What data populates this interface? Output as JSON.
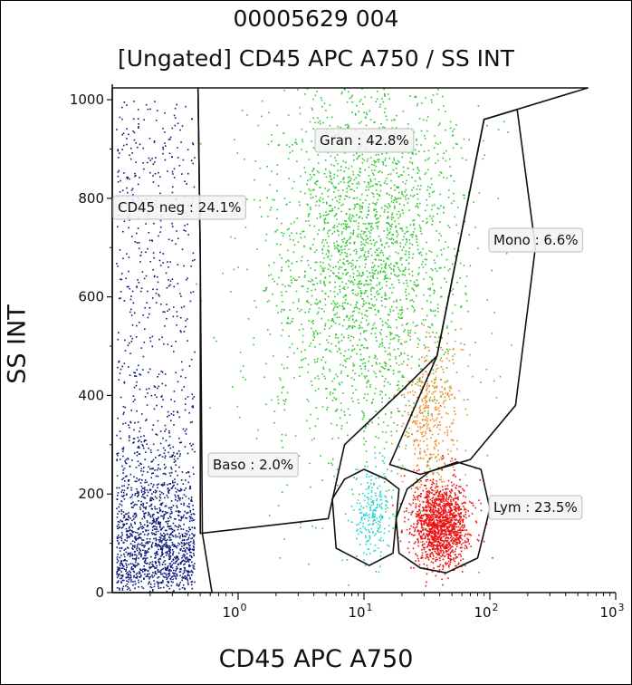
{
  "chart_data": {
    "type": "scatter",
    "title": "00005629 004",
    "subtitle": "[Ungated] CD45 APC A750 / SS INT",
    "xlabel": "CD45 APC A750",
    "ylabel": "SS INT",
    "xscale": "log",
    "xlim": [
      0.1,
      1000
    ],
    "ylim": [
      0,
      1024
    ],
    "xticks": [
      {
        "value": 1,
        "base": "10",
        "exp": "0"
      },
      {
        "value": 10,
        "base": "10",
        "exp": "1"
      },
      {
        "value": 100,
        "base": "10",
        "exp": "2"
      },
      {
        "value": 1000,
        "base": "10",
        "exp": "3"
      }
    ],
    "yticks": [
      {
        "value": 0,
        "label": "0"
      },
      {
        "value": 200,
        "label": "200"
      },
      {
        "value": 400,
        "label": "400"
      },
      {
        "value": 600,
        "label": "600"
      },
      {
        "value": 800,
        "label": "800"
      },
      {
        "value": 1000,
        "label": "1000"
      }
    ],
    "grid": false,
    "gates": [
      {
        "name": "CD45 neg",
        "label": "CD45 neg : 24.1%",
        "percent": 24.1,
        "color": "#0a1a7a",
        "polygon": [
          [
            0.1,
            1024
          ],
          [
            0.48,
            1024
          ],
          [
            0.5,
            680
          ],
          [
            0.52,
            120
          ],
          [
            0.62,
            0
          ],
          [
            0.1,
            0
          ]
        ]
      },
      {
        "name": "Gran",
        "label": "Gran : 42.8%",
        "percent": 42.8,
        "color": "#33cc33",
        "polygon": [
          [
            0.48,
            1024
          ],
          [
            80,
            1024
          ],
          [
            600,
            1024
          ],
          [
            90,
            960
          ],
          [
            38,
            480
          ],
          [
            20,
            410
          ],
          [
            7,
            300
          ],
          [
            5.2,
            150
          ],
          [
            0.5,
            120
          ],
          [
            0.5,
            680
          ]
        ]
      },
      {
        "name": "Mono",
        "label": "Mono : 6.6%",
        "percent": 6.6,
        "color": "#ee8a20",
        "polygon": [
          [
            90,
            960
          ],
          [
            165,
            980
          ],
          [
            230,
            700
          ],
          [
            160,
            380
          ],
          [
            70,
            270
          ],
          [
            28,
            240
          ],
          [
            16,
            260
          ],
          [
            38,
            480
          ]
        ]
      },
      {
        "name": "Baso",
        "label": "Baso : 2.0%",
        "percent": 2.0,
        "color": "#33dddd",
        "polygon": [
          [
            10,
            250
          ],
          [
            15,
            230
          ],
          [
            19,
            210
          ],
          [
            17,
            80
          ],
          [
            11,
            55
          ],
          [
            6,
            90
          ],
          [
            5.6,
            190
          ],
          [
            7,
            230
          ]
        ]
      },
      {
        "name": "Lym",
        "label": "Lym : 23.5%",
        "percent": 23.5,
        "color": "#ee1111",
        "polygon": [
          [
            18,
            150
          ],
          [
            22,
            210
          ],
          [
            33,
            245
          ],
          [
            55,
            265
          ],
          [
            85,
            250
          ],
          [
            100,
            170
          ],
          [
            80,
            70
          ],
          [
            45,
            40
          ],
          [
            28,
            50
          ],
          [
            19,
            80
          ]
        ]
      }
    ],
    "populations": [
      {
        "name": "CD45 neg",
        "color": "#0a1a7a",
        "count": 1900,
        "x_log_range": [
          -0.97,
          -0.35
        ],
        "y_mode": "low-dense"
      },
      {
        "name": "Gran",
        "color": "#2ec82e",
        "count": 2600,
        "x_log_center": 1.0,
        "x_log_sd": 0.38,
        "y_center": 690,
        "y_sd": 210
      },
      {
        "name": "Mono",
        "color": "#ee8a20",
        "count": 420,
        "x_log_center": 1.52,
        "x_log_sd": 0.13,
        "y_center": 360,
        "y_sd": 80
      },
      {
        "name": "Baso",
        "color": "#22d4d4",
        "count": 220,
        "x_log_center": 1.07,
        "x_log_sd": 0.07,
        "y_center": 160,
        "y_sd": 42
      },
      {
        "name": "Lym",
        "color": "#ee1111",
        "count": 1400,
        "x_log_center": 1.6,
        "x_log_sd": 0.11,
        "y_center": 140,
        "y_sd": 42
      }
    ]
  }
}
